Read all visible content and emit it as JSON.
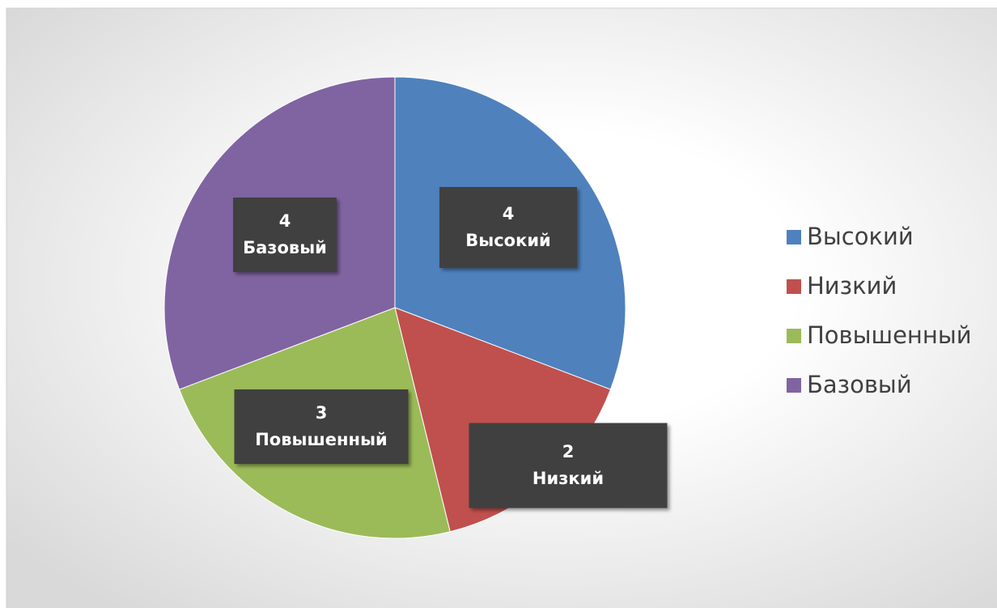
{
  "chart_data": {
    "type": "pie",
    "categories": [
      "Высокий",
      "Низкий",
      "Повышенный",
      "Базовый"
    ],
    "values": [
      4,
      2,
      3,
      4
    ],
    "colors": [
      "#4f81bd",
      "#c0504d",
      "#9bbb59",
      "#8064a2"
    ],
    "legend": "right"
  }
}
